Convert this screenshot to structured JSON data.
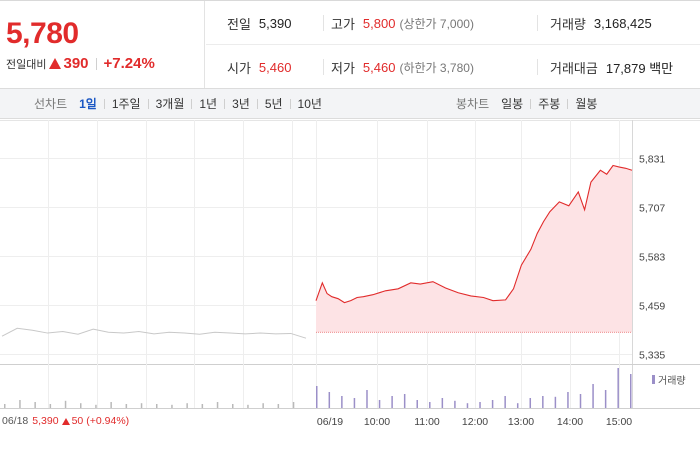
{
  "quote": {
    "price": "5,780",
    "change_label": "전일대비",
    "change_amount": "390",
    "change_percent": "+7.24%"
  },
  "stats": {
    "prev_close": {
      "label": "전일",
      "value": "5,390"
    },
    "open": {
      "label": "시가",
      "value": "5,460"
    },
    "high": {
      "label": "고가",
      "value": "5,800",
      "sub": "(상한가 7,000)"
    },
    "low": {
      "label": "저가",
      "value": "5,460",
      "sub": "(하한가 3,780)"
    },
    "volume": {
      "label": "거래량",
      "value": "3,168,425"
    },
    "trade_value": {
      "label": "거래대금",
      "value": "17,879 백만"
    }
  },
  "toolbar": {
    "line_title": "선차트",
    "line_items": [
      "1일",
      "1주일",
      "3개월",
      "1년",
      "3년",
      "5년",
      "10년"
    ],
    "line_active": "1일",
    "candle_title": "봉차트",
    "candle_items": [
      "일봉",
      "주봉",
      "월봉"
    ]
  },
  "colors": {
    "up": "#e12b2b",
    "down": "#1c58c4",
    "prev_line": "#c8c8c8",
    "area_fill": "#fde3e5",
    "volume": "#9b8fc8"
  },
  "prev_day": {
    "date": "06/18",
    "close": "5,390",
    "change": "50",
    "change_pct": "(+0.94%)"
  },
  "chart_data": {
    "type": "line",
    "y_tick_labels": [
      "5,831",
      "5,707",
      "5,583",
      "5,459",
      "5,335"
    ],
    "y_ticks": [
      5831,
      5707,
      5583,
      5459,
      5335
    ],
    "ylim": [
      5335,
      5831
    ],
    "x_tick_labels": [
      "06/19",
      "10:00",
      "11:00",
      "12:00",
      "13:00",
      "14:00",
      "15:00"
    ],
    "base_price": 5390,
    "legend": "거래량",
    "grid": true,
    "prev_day_x": [
      0,
      0.05,
      0.1,
      0.15,
      0.2,
      0.25,
      0.3,
      0.35,
      0.4,
      0.45,
      0.5,
      0.55,
      0.6,
      0.65,
      0.7,
      0.75,
      0.8,
      0.85,
      0.9,
      0.95,
      1.0
    ],
    "prev_day_y": [
      5380,
      5400,
      5395,
      5388,
      5392,
      5385,
      5398,
      5390,
      5388,
      5392,
      5386,
      5390,
      5388,
      5385,
      5390,
      5388,
      5386,
      5388,
      5386,
      5387,
      5375
    ],
    "today_x": [
      0,
      0.02,
      0.035,
      0.05,
      0.07,
      0.09,
      0.11,
      0.13,
      0.15,
      0.18,
      0.22,
      0.26,
      0.3,
      0.33,
      0.37,
      0.41,
      0.45,
      0.49,
      0.53,
      0.56,
      0.6,
      0.625,
      0.65,
      0.68,
      0.7,
      0.72,
      0.74,
      0.77,
      0.8,
      0.83,
      0.85,
      0.87,
      0.9,
      0.92,
      0.94,
      0.96,
      0.98,
      1.0
    ],
    "today_y": [
      5470,
      5515,
      5488,
      5480,
      5475,
      5465,
      5470,
      5478,
      5480,
      5485,
      5495,
      5500,
      5515,
      5512,
      5518,
      5502,
      5490,
      5482,
      5478,
      5470,
      5472,
      5500,
      5560,
      5600,
      5640,
      5670,
      5695,
      5720,
      5710,
      5745,
      5700,
      5770,
      5800,
      5790,
      5812,
      5808,
      5805,
      5800
    ],
    "volume_today_x": [
      0,
      0.04,
      0.08,
      0.12,
      0.16,
      0.2,
      0.24,
      0.28,
      0.32,
      0.36,
      0.4,
      0.44,
      0.48,
      0.52,
      0.56,
      0.6,
      0.64,
      0.68,
      0.72,
      0.76,
      0.8,
      0.84,
      0.88,
      0.92,
      0.96,
      1.0
    ],
    "volume_today": [
      0.55,
      0.4,
      0.3,
      0.25,
      0.45,
      0.2,
      0.3,
      0.35,
      0.2,
      0.15,
      0.25,
      0.18,
      0.12,
      0.15,
      0.2,
      0.3,
      0.12,
      0.25,
      0.3,
      0.28,
      0.4,
      0.35,
      0.6,
      0.45,
      1.0,
      0.85
    ],
    "volume_prev": [
      0.1,
      0.2,
      0.15,
      0.1,
      0.18,
      0.12,
      0.08,
      0.15,
      0.1,
      0.12,
      0.1,
      0.08,
      0.12,
      0.1,
      0.15,
      0.1,
      0.08,
      0.12,
      0.1,
      0.15
    ]
  }
}
